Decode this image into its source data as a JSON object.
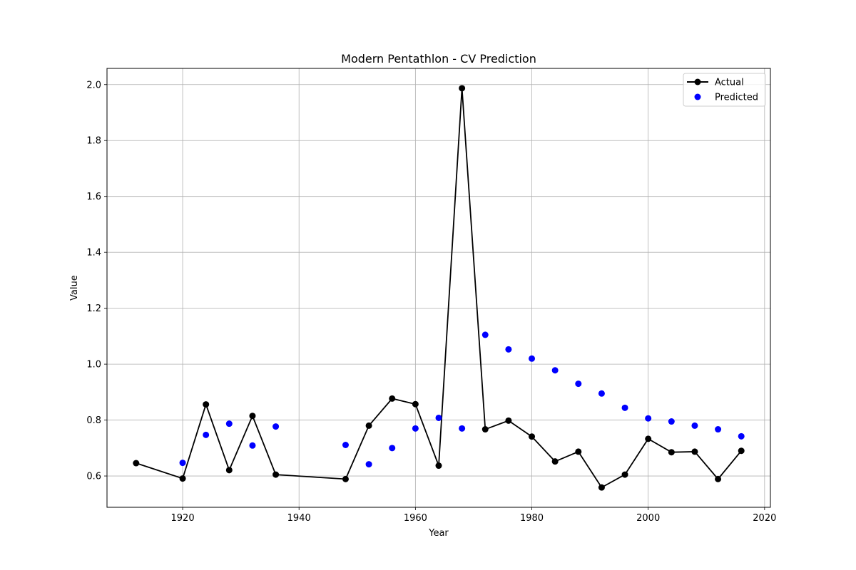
{
  "chart_data": {
    "type": "line",
    "title": "Modern Pentathlon - CV Prediction",
    "xlabel": "Year",
    "ylabel": "Value",
    "xlim": [
      1907,
      2021
    ],
    "ylim": [
      0.488,
      2.058
    ],
    "xticks": [
      1920,
      1940,
      1960,
      1980,
      2000,
      2020
    ],
    "yticks": [
      0.6,
      0.8,
      1.0,
      1.2,
      1.4,
      1.6,
      1.8,
      2.0
    ],
    "grid": true,
    "legend_position": "top-right",
    "series": [
      {
        "name": "Actual",
        "style": "line-with-markers",
        "color": "#000000",
        "points": [
          [
            1912,
            0.646
          ],
          [
            1920,
            0.591
          ],
          [
            1924,
            0.856
          ],
          [
            1928,
            0.621
          ],
          [
            1932,
            0.815
          ],
          [
            1936,
            0.605
          ],
          [
            1948,
            0.589
          ],
          [
            1952,
            0.78
          ],
          [
            1956,
            0.877
          ],
          [
            1960,
            0.857
          ],
          [
            1964,
            0.637
          ],
          [
            1968,
            1.987
          ],
          [
            1972,
            0.767
          ],
          [
            1976,
            0.798
          ],
          [
            1980,
            0.741
          ],
          [
            1984,
            0.652
          ],
          [
            1988,
            0.687
          ],
          [
            1992,
            0.559
          ],
          [
            1996,
            0.605
          ],
          [
            2000,
            0.733
          ],
          [
            2004,
            0.685
          ],
          [
            2008,
            0.687
          ],
          [
            2012,
            0.589
          ],
          [
            2016,
            0.69
          ]
        ]
      },
      {
        "name": "Predicted",
        "style": "scatter",
        "color": "#0000ff",
        "points": [
          [
            1920,
            0.647
          ],
          [
            1924,
            0.747
          ],
          [
            1928,
            0.787
          ],
          [
            1932,
            0.709
          ],
          [
            1936,
            0.777
          ],
          [
            1948,
            0.711
          ],
          [
            1952,
            0.642
          ],
          [
            1956,
            0.7
          ],
          [
            1960,
            0.77
          ],
          [
            1964,
            0.808
          ],
          [
            1968,
            0.77
          ],
          [
            1972,
            1.105
          ],
          [
            1976,
            1.053
          ],
          [
            1980,
            1.02
          ],
          [
            1984,
            0.978
          ],
          [
            1988,
            0.93
          ],
          [
            1992,
            0.895
          ],
          [
            1996,
            0.844
          ],
          [
            2000,
            0.806
          ],
          [
            2004,
            0.795
          ],
          [
            2008,
            0.78
          ],
          [
            2012,
            0.767
          ],
          [
            2016,
            0.742
          ]
        ]
      }
    ]
  }
}
